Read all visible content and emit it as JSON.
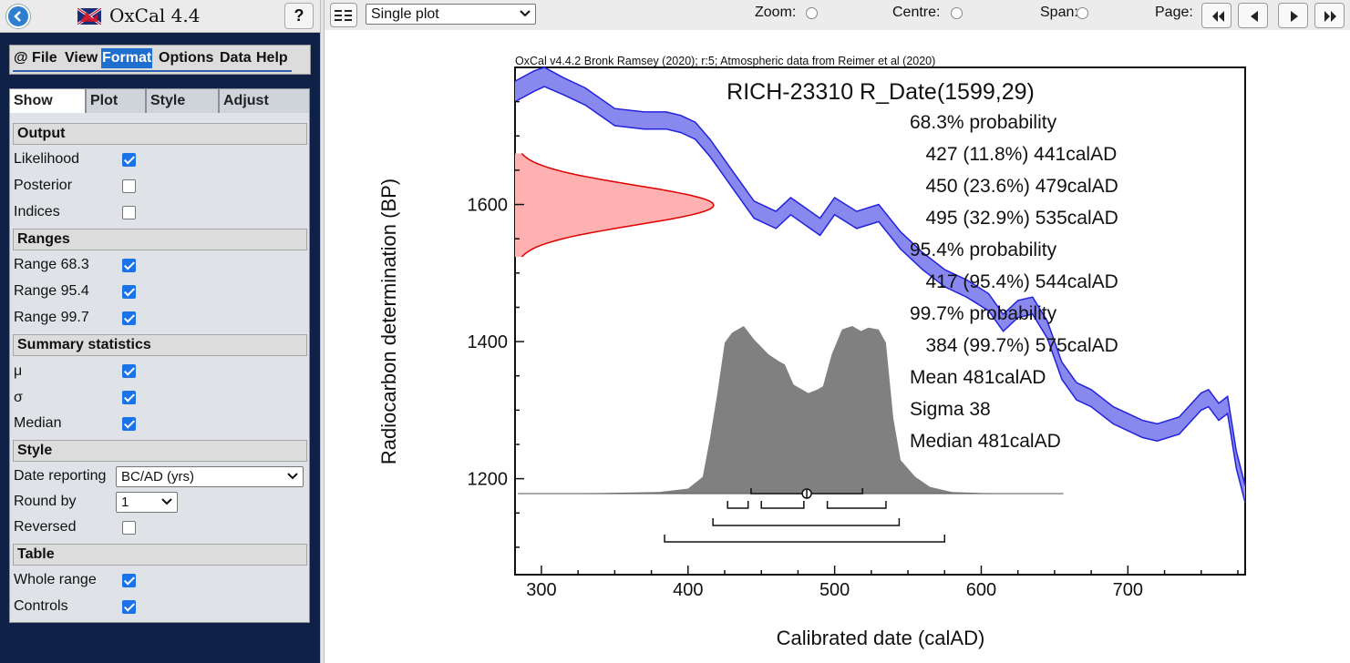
{
  "app": {
    "title": "OxCal 4.4",
    "help_label": "?"
  },
  "menu": {
    "items": [
      {
        "label": "@ File",
        "active": false
      },
      {
        "label": "View",
        "active": false
      },
      {
        "label": "Format",
        "active": true
      },
      {
        "label": "Options",
        "active": false
      },
      {
        "label": "Data",
        "active": false
      },
      {
        "label": "Help",
        "active": false
      }
    ]
  },
  "tabs": [
    "Show",
    "Plot",
    "Style",
    "Adjust"
  ],
  "panel": {
    "output_header": "Output",
    "likelihood": "Likelihood",
    "posterior": "Posterior",
    "indices": "Indices",
    "ranges_header": "Ranges",
    "range683": "Range 68.3",
    "range954": "Range 95.4",
    "range997": "Range 99.7",
    "summary_header": "Summary statistics",
    "mu": "μ",
    "sigma": "σ",
    "median": "Median",
    "style_header": "Style",
    "date_reporting": "Date reporting",
    "date_reporting_value": "BC/AD (yrs)",
    "round_by": "Round by",
    "round_by_value": "1",
    "reversed": "Reversed",
    "table_header": "Table",
    "whole_range": "Whole range",
    "controls": "Controls",
    "checks": {
      "likelihood": true,
      "posterior": false,
      "indices": false,
      "range683": true,
      "range954": true,
      "range997": true,
      "mu": true,
      "sigma": true,
      "median": true,
      "reversed": false,
      "whole_range": true,
      "controls": true
    }
  },
  "toolbar": {
    "plot_mode": "Single plot",
    "zoom": "Zoom:",
    "centre": "Centre:",
    "span": "Span:",
    "page": "Page:"
  },
  "plot": {
    "header": "OxCal v4.4.2 Bronk Ramsey (2020); r:5; Atmospheric data from Reimer et al (2020)",
    "title": "RICH-23310 R_Date(1599,29)",
    "xlabel": "Calibrated date (calAD)",
    "ylabel": "Radiocarbon determination (BP)",
    "stats_lines": [
      "68.3% probability",
      "  427 (11.8%) 441calAD",
      "  450 (23.6%) 479calAD",
      "  495 (32.9%) 535calAD",
      "95.4% probability",
      "  417 (95.4%) 544calAD",
      "99.7% probability",
      "  384 (99.7%) 575calAD",
      "Mean 481calAD",
      "Sigma 38",
      "Median 481calAD"
    ],
    "colors": {
      "curve_fill": "#8888ee",
      "curve_line": "#2222dd",
      "likelihood_fill": "#ffb0b0",
      "likelihood_line": "#dd0000",
      "posterior_fill": "#808080"
    }
  },
  "chart_data": {
    "type": "area",
    "title": "RICH-23310 R_Date(1599,29)",
    "xlabel": "Calibrated date (calAD)",
    "ylabel": "Radiocarbon determination (BP)",
    "xlim": [
      282,
      780
    ],
    "ylim": [
      1060,
      1800
    ],
    "x_ticks": [
      300,
      400,
      500,
      600,
      700
    ],
    "y_ticks": [
      1200,
      1400,
      1600
    ],
    "calibration_curve": {
      "x": [
        282,
        295,
        302,
        315,
        330,
        350,
        370,
        385,
        395,
        405,
        415,
        420,
        430,
        445,
        460,
        470,
        480,
        490,
        500,
        515,
        530,
        545,
        560,
        575,
        590,
        605,
        615,
        625,
        635,
        645,
        655,
        665,
        675,
        690,
        700,
        710,
        720,
        735,
        750,
        755,
        762,
        768,
        774,
        780
      ],
      "upper": [
        1780,
        1795,
        1800,
        1785,
        1770,
        1740,
        1735,
        1735,
        1730,
        1720,
        1695,
        1680,
        1650,
        1605,
        1590,
        1610,
        1595,
        1580,
        1610,
        1590,
        1600,
        1560,
        1530,
        1505,
        1490,
        1470,
        1440,
        1460,
        1465,
        1430,
        1370,
        1340,
        1330,
        1305,
        1295,
        1285,
        1280,
        1290,
        1325,
        1330,
        1310,
        1320,
        1240,
        1190
      ],
      "lower": [
        1750,
        1765,
        1772,
        1760,
        1745,
        1715,
        1710,
        1710,
        1705,
        1695,
        1670,
        1655,
        1625,
        1580,
        1565,
        1585,
        1570,
        1555,
        1585,
        1565,
        1575,
        1535,
        1505,
        1480,
        1465,
        1445,
        1415,
        1435,
        1440,
        1405,
        1345,
        1315,
        1305,
        1280,
        1270,
        1260,
        1255,
        1265,
        1300,
        1305,
        1285,
        1295,
        1215,
        1165
      ]
    },
    "likelihood_bp": {
      "mu": 1599,
      "sigma": 29
    },
    "posterior_calAD": {
      "x": [
        284,
        340,
        380,
        400,
        410,
        415,
        420,
        425,
        430,
        438,
        445,
        455,
        462,
        466,
        472,
        478,
        482,
        488,
        492,
        498,
        505,
        512,
        518,
        523,
        530,
        535,
        540,
        545,
        555,
        565,
        580,
        600,
        656
      ],
      "density": [
        0,
        0.003,
        0.01,
        0.03,
        0.1,
        0.33,
        0.6,
        0.9,
        0.96,
        1.0,
        0.92,
        0.83,
        0.79,
        0.77,
        0.65,
        0.62,
        0.6,
        0.62,
        0.64,
        0.83,
        0.98,
        1.0,
        0.97,
        0.99,
        0.98,
        0.9,
        0.45,
        0.2,
        0.1,
        0.04,
        0.01,
        0.003,
        0
      ]
    },
    "ranges_683": [
      [
        427,
        441
      ],
      [
        450,
        479
      ],
      [
        495,
        535
      ]
    ],
    "ranges_954": [
      [
        417,
        544
      ]
    ],
    "ranges_997": [
      [
        384,
        575
      ]
    ],
    "mean": 481,
    "sigma": 38
  }
}
